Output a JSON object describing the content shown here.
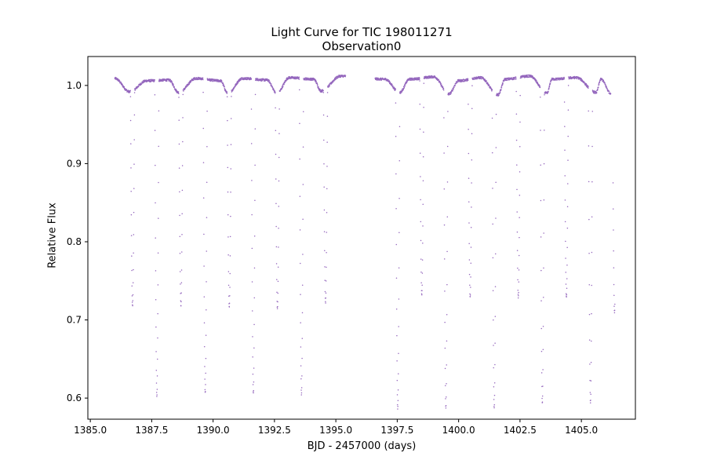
{
  "chart_data": {
    "type": "scatter",
    "title": "Light Curve for TIC 198011271",
    "subtitle": "Observation0",
    "xlabel": "BJD - 2457000 (days)",
    "ylabel": "Relative Flux",
    "xlim": [
      1384.9,
      1407.2
    ],
    "ylim": [
      0.573,
      1.037
    ],
    "xticks": [
      1385.0,
      1387.5,
      1390.0,
      1392.5,
      1395.0,
      1397.5,
      1400.0,
      1402.5,
      1405.0
    ],
    "xtick_labels": [
      "1385.0",
      "1387.5",
      "1390.0",
      "1392.5",
      "1395.0",
      "1397.5",
      "1400.0",
      "1402.5",
      "1405.0"
    ],
    "yticks": [
      0.6,
      0.7,
      0.8,
      0.9,
      1.0
    ],
    "ytick_labels": [
      "0.6",
      "0.7",
      "0.8",
      "0.9",
      "1.0"
    ],
    "grid": false,
    "marker_color": "#9467bd",
    "observation_segments": [
      [
        1386.0,
        1395.4
      ],
      [
        1396.6,
        1406.2
      ]
    ],
    "out_of_eclipse": {
      "baseline": 1.0,
      "maxima": [
        [
          1386.0,
          1.009
        ],
        [
          1387.3,
          1.006
        ],
        [
          1388.2,
          1.007
        ],
        [
          1389.3,
          1.009
        ],
        [
          1390.3,
          1.006
        ],
        [
          1391.2,
          1.009
        ],
        [
          1392.2,
          1.007
        ],
        [
          1393.1,
          1.01
        ],
        [
          1394.1,
          1.008
        ],
        [
          1395.2,
          1.012
        ],
        [
          1397.0,
          1.008
        ],
        [
          1398.0,
          1.008
        ],
        [
          1399.0,
          1.011
        ],
        [
          1400.0,
          1.006
        ],
        [
          1400.9,
          1.01
        ],
        [
          1401.9,
          1.008
        ],
        [
          1402.9,
          1.012
        ],
        [
          1403.8,
          1.008
        ],
        [
          1404.8,
          1.01
        ],
        [
          1405.8,
          1.008
        ]
      ],
      "minima": [
        [
          1386.6,
          0.992
        ],
        [
          1388.6,
          0.991
        ],
        [
          1390.6,
          0.99
        ],
        [
          1392.6,
          0.99
        ],
        [
          1394.4,
          0.993
        ],
        [
          1397.6,
          0.991
        ],
        [
          1399.6,
          0.989
        ],
        [
          1401.6,
          0.988
        ],
        [
          1403.6,
          0.99
        ],
        [
          1405.6,
          0.991
        ],
        [
          1406.2,
          0.99
        ]
      ]
    },
    "eclipses": [
      {
        "t": 1386.72,
        "depth_flux": 0.725,
        "type": "secondary"
      },
      {
        "t": 1387.71,
        "depth_flux": 0.595,
        "type": "primary"
      },
      {
        "t": 1388.69,
        "depth_flux": 0.727,
        "type": "secondary"
      },
      {
        "t": 1389.68,
        "depth_flux": 0.598,
        "type": "primary"
      },
      {
        "t": 1390.66,
        "depth_flux": 0.725,
        "type": "secondary"
      },
      {
        "t": 1391.64,
        "depth_flux": 0.597,
        "type": "primary"
      },
      {
        "t": 1392.62,
        "depth_flux": 0.724,
        "type": "secondary"
      },
      {
        "t": 1393.6,
        "depth_flux": 0.596,
        "type": "primary"
      },
      {
        "t": 1394.58,
        "depth_flux": 0.727,
        "type": "secondary"
      },
      {
        "t": 1397.52,
        "depth_flux": 0.595,
        "type": "primary"
      },
      {
        "t": 1398.5,
        "depth_flux": 0.722,
        "type": "secondary"
      },
      {
        "t": 1399.48,
        "depth_flux": 0.596,
        "type": "primary"
      },
      {
        "t": 1400.47,
        "depth_flux": 0.72,
        "type": "secondary"
      },
      {
        "t": 1401.45,
        "depth_flux": 0.597,
        "type": "primary"
      },
      {
        "t": 1402.43,
        "depth_flux": 0.718,
        "type": "secondary"
      },
      {
        "t": 1403.41,
        "depth_flux": 0.6,
        "type": "primary"
      },
      {
        "t": 1404.39,
        "depth_flux": 0.719,
        "type": "secondary"
      },
      {
        "t": 1405.37,
        "depth_flux": 0.598,
        "type": "primary"
      },
      {
        "t": 1406.35,
        "depth_flux": 0.72,
        "type": "secondary"
      }
    ]
  }
}
